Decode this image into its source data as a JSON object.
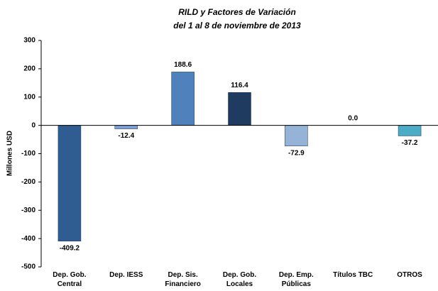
{
  "chart_data": {
    "type": "bar",
    "title": "RILD y Factores de Variación",
    "subtitle": "del  1 al 8 de noviembre de 2013",
    "y_label": "Millones USD",
    "categories": [
      "Dep. Gob. Central",
      "Dep. IESS",
      "Dep. Sis.\nFinanciero",
      "Dep. Gob. Locales",
      "Dep. Emp.\nPúblicas",
      "Títulos TBC",
      "OTROS"
    ],
    "values": [
      -409.2,
      -12.4,
      188.6,
      116.4,
      -72.9,
      0.0,
      -37.2
    ],
    "value_labels": [
      "-409.2",
      "-12.4",
      "188.6",
      "116.4",
      "-72.9",
      "0.0",
      "-37.2"
    ],
    "colors": [
      "#2f5d92",
      "#7f9fd8",
      "#4f81bd",
      "#1f3b60",
      "#95b3d7",
      "#8db4e2",
      "#4bacc6"
    ],
    "ylim": [
      -500,
      300
    ],
    "yticks": [
      -500,
      -400,
      -300,
      -200,
      -100,
      0,
      100,
      200,
      300
    ]
  }
}
